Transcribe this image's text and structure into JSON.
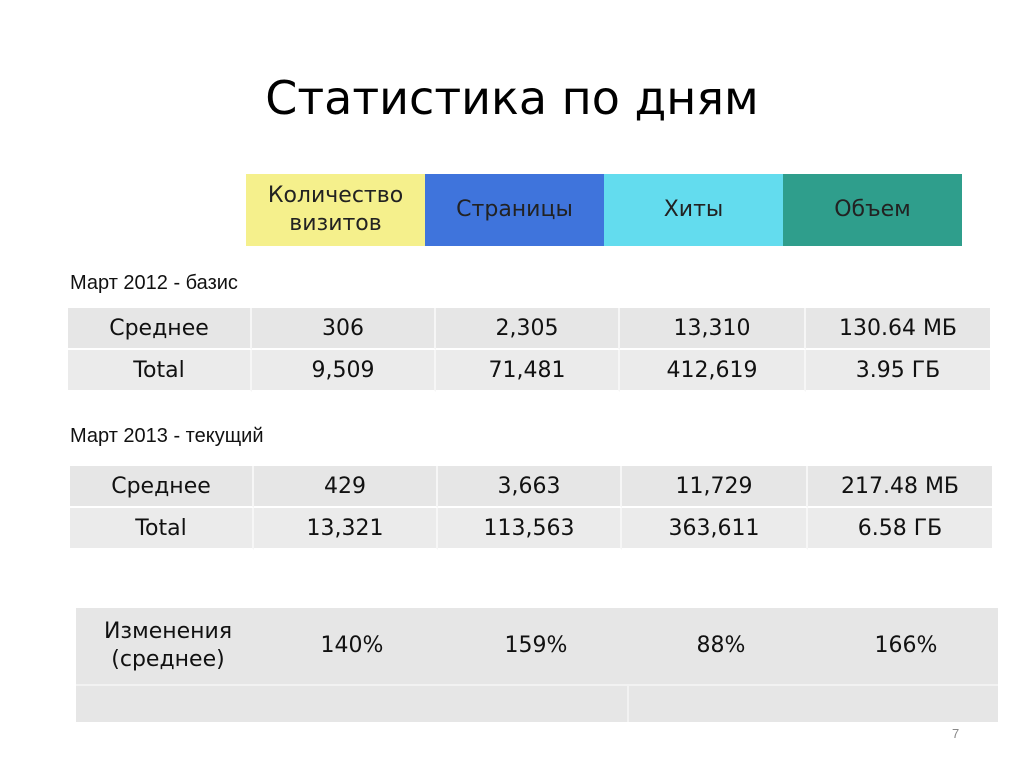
{
  "title": "Статистика по дням",
  "header": {
    "cells": [
      {
        "label": "Количество визитов",
        "color": "#f5f08c"
      },
      {
        "label": "Страницы",
        "color": "#3f74dc"
      },
      {
        "label": "Хиты",
        "color": "#63dcee"
      },
      {
        "label": "Объем",
        "color": "#2f9e8c"
      }
    ]
  },
  "section2012": {
    "label": "Март 2012 - базис",
    "rows": [
      {
        "name": "Среднее",
        "values": [
          "306",
          "2,305",
          "13,310",
          "130.64 МБ"
        ]
      },
      {
        "name": "Total",
        "values": [
          "9,509",
          "71,481",
          "412,619",
          "3.95 ГБ"
        ]
      }
    ]
  },
  "section2013": {
    "label": "Март 2013 - текущий",
    "rows": [
      {
        "name": "Среднее",
        "values": [
          "429",
          "3,663",
          "11,729",
          "217.48 МБ"
        ]
      },
      {
        "name": "Total",
        "values": [
          "13,321",
          "113,563",
          "363,611",
          "6.58 ГБ"
        ]
      }
    ]
  },
  "changes": {
    "label": "Изменения (среднее)",
    "values": [
      "140%",
      "159%",
      "88%",
      "166%"
    ]
  },
  "page_number": "7"
}
